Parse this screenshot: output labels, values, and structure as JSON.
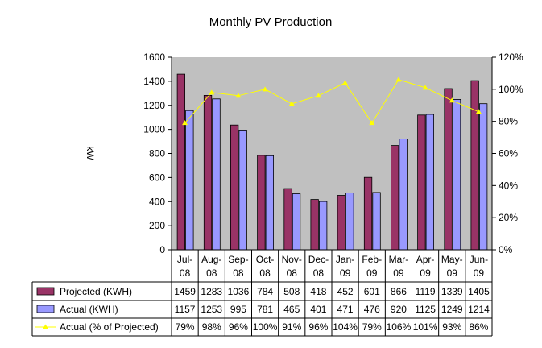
{
  "chart_data": {
    "type": "bar",
    "title": "Monthly PV Production",
    "ylabel": "kW",
    "ylim": [
      0,
      1600
    ],
    "y2lim": [
      0,
      120
    ],
    "yticks": [
      "0",
      "200",
      "400",
      "600",
      "800",
      "1000",
      "1200",
      "1400",
      "1600"
    ],
    "y2ticks": [
      "0%",
      "20%",
      "40%",
      "60%",
      "80%",
      "100%",
      "120%"
    ],
    "grid": false,
    "legend": "data-table-left",
    "categories": [
      [
        "Jul-",
        "08"
      ],
      [
        "Aug-",
        "08"
      ],
      [
        "Sep-",
        "08"
      ],
      [
        "Oct-",
        "08"
      ],
      [
        "Nov-",
        "08"
      ],
      [
        "Dec-",
        "08"
      ],
      [
        "Jan-",
        "09"
      ],
      [
        "Feb-",
        "09"
      ],
      [
        "Mar-",
        "09"
      ],
      [
        "Apr-",
        "09"
      ],
      [
        "May-",
        "09"
      ],
      [
        "Jun-",
        "09"
      ]
    ],
    "series": [
      {
        "name": "Projected (KWH)",
        "kind": "bar",
        "axis": "left",
        "color": "#993366",
        "values": [
          1459,
          1283,
          1036,
          784,
          508,
          418,
          452,
          601,
          866,
          1119,
          1339,
          1405
        ],
        "labels": [
          "1459",
          "1283",
          "1036",
          "784",
          "508",
          "418",
          "452",
          "601",
          "866",
          "1119",
          "1339",
          "1405"
        ]
      },
      {
        "name": "Actual (KWH)",
        "kind": "bar",
        "axis": "left",
        "color": "#9999ff",
        "values": [
          1157,
          1253,
          995,
          781,
          465,
          401,
          471,
          476,
          920,
          1125,
          1249,
          1214
        ],
        "labels": [
          "1157",
          "1253",
          "995",
          "781",
          "465",
          "401",
          "471",
          "476",
          "920",
          "1125",
          "1249",
          "1214"
        ]
      },
      {
        "name": "Actual (% of Projected)",
        "kind": "line",
        "axis": "right",
        "color": "#ffff00",
        "values": [
          79,
          98,
          96,
          100,
          91,
          96,
          104,
          79,
          106,
          101,
          93,
          86
        ],
        "labels": [
          "79%",
          "98%",
          "96%",
          "100%",
          "91%",
          "96%",
          "104%",
          "79%",
          "106%",
          "101%",
          "93%",
          "86%"
        ]
      }
    ],
    "colors": {
      "plot_area": "#c0c0c0",
      "page": "#ffffff",
      "line_marker": "#ffff00"
    }
  }
}
